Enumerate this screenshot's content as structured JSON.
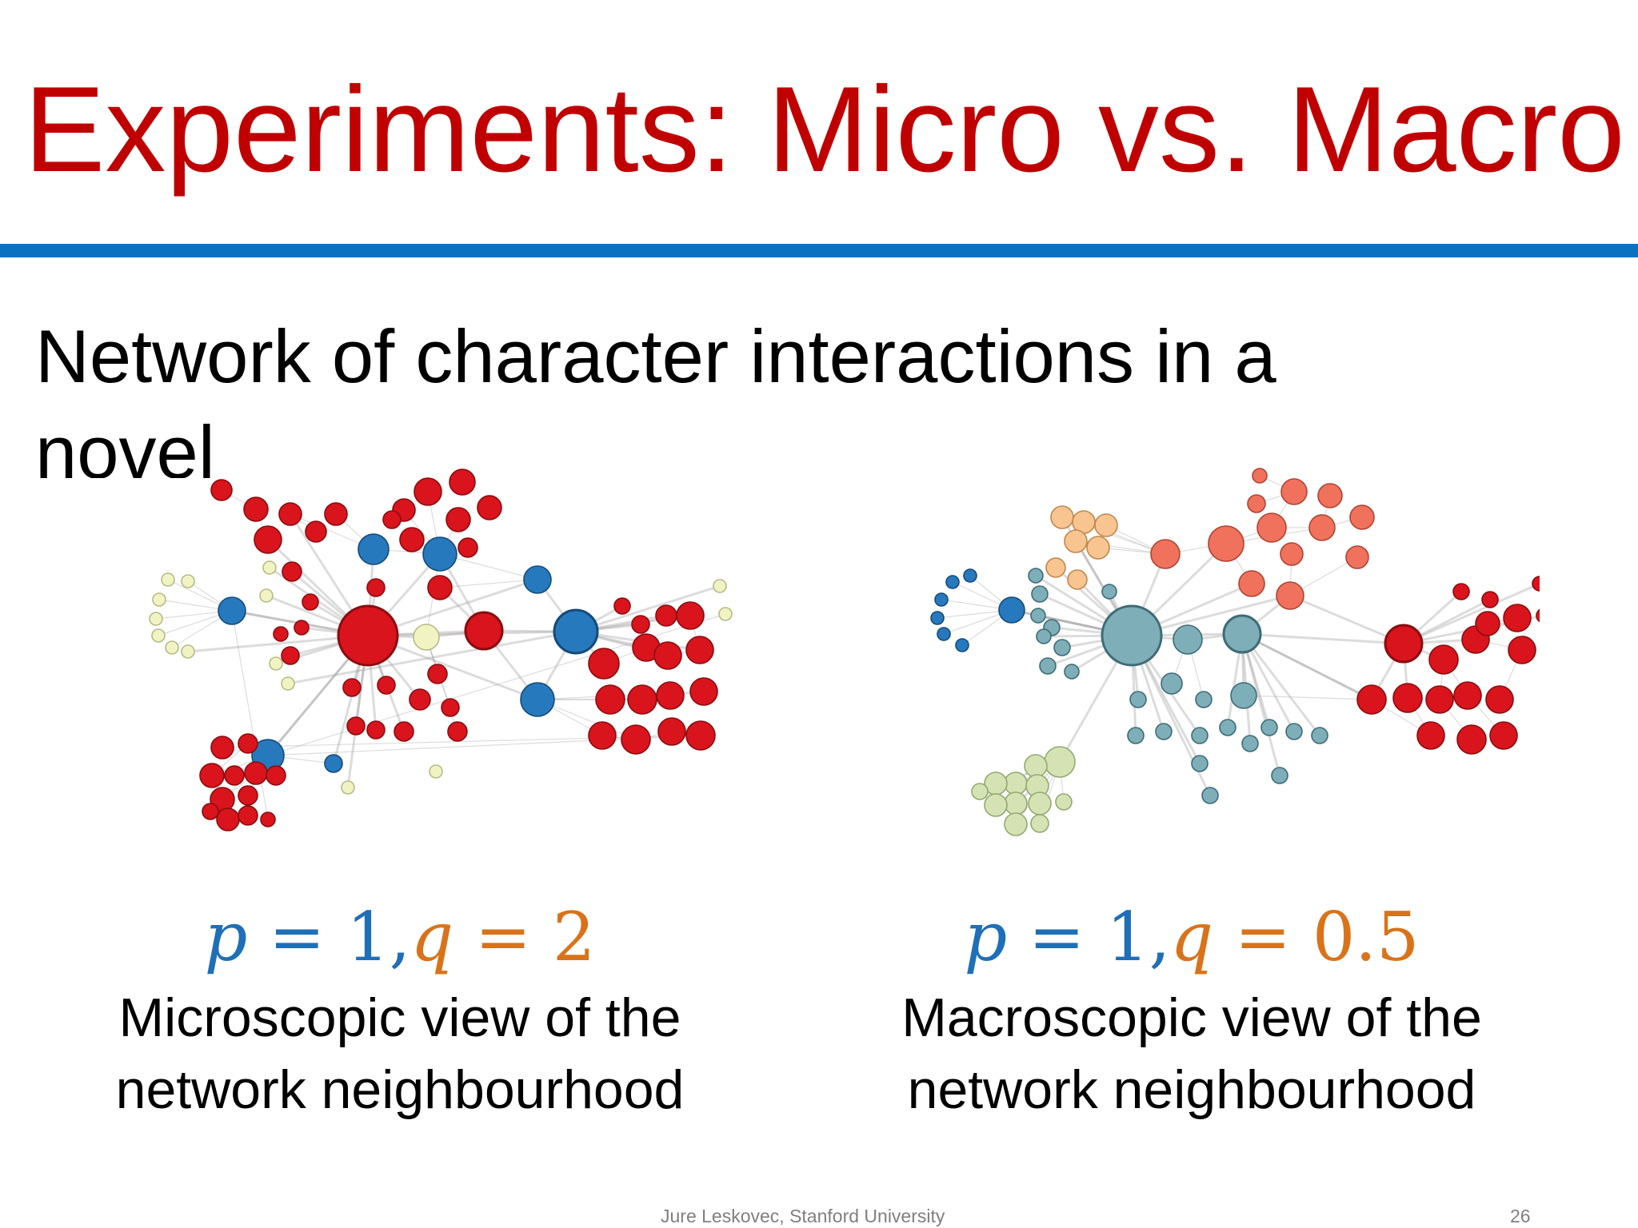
{
  "slide": {
    "title": "Experiments: Micro vs. Macro",
    "lead_text": "Network of character interactions in a novel",
    "footer": "Jure Leskovec, Stanford University",
    "page_number": "26"
  },
  "colors": {
    "title": "#c00000",
    "rule": "#0b72c1",
    "param_p": "#1f6fb8",
    "param_q": "#d9731a"
  },
  "panels": [
    {
      "p_var": "p",
      "p_op": " = ",
      "p_value": "1",
      "sep": ",",
      "q_var": "q",
      "q_op": " = ",
      "q_value": "2",
      "caption": "Microscopic view of the network neighbourhood"
    },
    {
      "p_var": "p",
      "p_op": " = ",
      "p_value": "1",
      "sep": ",",
      "q_var": "q",
      "q_op": " = ",
      "q_value": "0.5",
      "caption": "Macroscopic view of the network neighbourhood"
    }
  ]
}
